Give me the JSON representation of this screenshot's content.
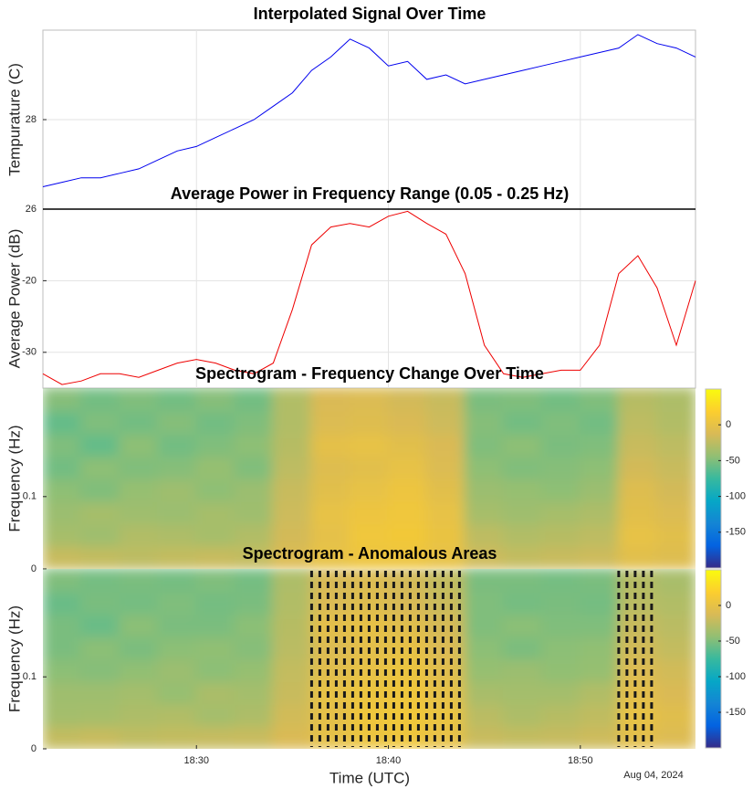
{
  "chart_data": [
    {
      "type": "line",
      "title": "Interpolated Signal Over Time",
      "ylabel": "Tempurature (C)",
      "color": "#0000ee",
      "grid": true,
      "x": [
        "18:22",
        "18:23",
        "18:24",
        "18:25",
        "18:26",
        "18:27",
        "18:28",
        "18:29",
        "18:30",
        "18:31",
        "18:32",
        "18:33",
        "18:34",
        "18:35",
        "18:36",
        "18:37",
        "18:38",
        "18:39",
        "18:40",
        "18:41",
        "18:42",
        "18:43",
        "18:44",
        "18:45",
        "18:46",
        "18:47",
        "18:48",
        "18:49",
        "18:50",
        "18:51",
        "18:52",
        "18:53",
        "18:54",
        "18:55",
        "18:56"
      ],
      "values": [
        26.5,
        26.6,
        26.7,
        26.7,
        26.8,
        26.9,
        27.1,
        27.3,
        27.4,
        27.6,
        27.8,
        28.0,
        28.3,
        28.6,
        29.1,
        29.4,
        29.8,
        29.6,
        29.2,
        29.3,
        28.9,
        29.0,
        28.8,
        28.9,
        29.0,
        29.1,
        29.2,
        29.3,
        29.4,
        29.5,
        29.6,
        29.9,
        29.7,
        29.6,
        29.4
      ],
      "xlim": [
        "18:22",
        "18:56"
      ],
      "ylim": [
        26,
        30
      ],
      "yticks": [
        26,
        28
      ]
    },
    {
      "type": "line",
      "title": "Average Power in Frequency Range (0.05 - 0.25 Hz)",
      "ylabel": "Average Power (dB)",
      "color": "#ee0000",
      "grid": true,
      "x": [
        "18:22",
        "18:23",
        "18:24",
        "18:25",
        "18:26",
        "18:27",
        "18:28",
        "18:29",
        "18:30",
        "18:31",
        "18:32",
        "18:33",
        "18:34",
        "18:35",
        "18:36",
        "18:37",
        "18:38",
        "18:39",
        "18:40",
        "18:41",
        "18:42",
        "18:43",
        "18:44",
        "18:45",
        "18:46",
        "18:47",
        "18:48",
        "18:49",
        "18:50",
        "18:51",
        "18:52",
        "18:53",
        "18:54",
        "18:55",
        "18:56"
      ],
      "values": [
        -33,
        -34.5,
        -34,
        -33,
        -33,
        -33.5,
        -32.5,
        -31.5,
        -31,
        -31.5,
        -32.5,
        -33,
        -31.5,
        -24,
        -15,
        -12.5,
        -12,
        -12.5,
        -11,
        -10.3,
        -12,
        -13.5,
        -19,
        -29,
        -33,
        -33.5,
        -33,
        -32.5,
        -32.5,
        -29,
        -19,
        -16.5,
        -21,
        -29,
        -20
      ],
      "xlim": [
        "18:22",
        "18:56"
      ],
      "ylim": [
        -35,
        -10
      ],
      "yticks": [
        -30,
        -20
      ]
    },
    {
      "type": "heatmap",
      "title": "Spectrogram - Frequency Change Over Time",
      "ylabel": "Frequency (Hz)",
      "xlim": [
        "18:22",
        "18:56"
      ],
      "ylim": [
        0,
        0.25
      ],
      "yticks": [
        0,
        0.1
      ],
      "clim": [
        -200,
        50
      ],
      "cticks": [
        -150,
        -100,
        -50,
        0
      ],
      "colormap": [
        "#352a87",
        "#0363e1",
        "#1485d4",
        "#06a7c6",
        "#38b99e",
        "#92bf73",
        "#d9ba56",
        "#fcce2e",
        "#f9fb0e"
      ],
      "z": [
        [
          -20,
          -22,
          -25,
          -22,
          -20,
          -22,
          -10,
          0,
          5,
          5,
          0,
          -18,
          -22,
          -20,
          -18,
          -5,
          -8
        ],
        [
          -35,
          -38,
          -30,
          -32,
          -35,
          -30,
          -15,
          -2,
          8,
          10,
          2,
          -25,
          -30,
          -28,
          -25,
          0,
          -5
        ],
        [
          -40,
          -35,
          -38,
          -40,
          -35,
          -38,
          -18,
          0,
          5,
          8,
          0,
          -35,
          -38,
          -35,
          -32,
          -5,
          -10
        ],
        [
          -45,
          -50,
          -42,
          -38,
          -45,
          -40,
          -20,
          -5,
          0,
          5,
          -5,
          -40,
          -42,
          -45,
          -40,
          -8,
          -15
        ],
        [
          -55,
          -45,
          -50,
          -48,
          -42,
          -50,
          -25,
          -8,
          -5,
          0,
          -10,
          -45,
          -50,
          -48,
          -45,
          -15,
          -20
        ],
        [
          -50,
          -60,
          -45,
          -55,
          -50,
          -45,
          -28,
          -3,
          0,
          -5,
          -12,
          -50,
          -45,
          -52,
          -50,
          -20,
          -25
        ],
        [
          -60,
          -50,
          -55,
          -48,
          -55,
          -50,
          -30,
          -10,
          -8,
          -12,
          -18,
          -48,
          -55,
          -50,
          -55,
          -25,
          -30
        ],
        [
          -48,
          -55,
          -50,
          -55,
          -48,
          -55,
          -30,
          -12,
          -10,
          -15,
          -20,
          -52,
          -50,
          -55,
          -50,
          -28,
          -32
        ]
      ]
    },
    {
      "type": "heatmap",
      "title": "Spectrogram - Anomalous Areas",
      "ylabel": "Frequency (Hz)",
      "xlabel": "Time (UTC)",
      "date_label": "Aug 04, 2024",
      "xlim": [
        "18:22",
        "18:56"
      ],
      "xticks": [
        "18:30",
        "18:40",
        "18:50"
      ],
      "ylim": [
        0,
        0.25
      ],
      "yticks": [
        0,
        0.1
      ],
      "clim": [
        -200,
        50
      ],
      "cticks": [
        -150,
        -100,
        -50,
        0
      ],
      "colormap": [
        "#352a87",
        "#0363e1",
        "#1485d4",
        "#06a7c6",
        "#38b99e",
        "#92bf73",
        "#d9ba56",
        "#fcce2e",
        "#f9fb0e"
      ],
      "z": [
        [
          -22,
          -20,
          -24,
          -22,
          -21,
          -20,
          -12,
          -2,
          4,
          6,
          0,
          -20,
          -22,
          -21,
          -18,
          -4,
          -9
        ],
        [
          -36,
          -35,
          -32,
          -30,
          -36,
          -32,
          -16,
          -3,
          6,
          9,
          3,
          -26,
          -32,
          -28,
          -24,
          0,
          -6
        ],
        [
          -38,
          -38,
          -36,
          -42,
          -33,
          -36,
          -20,
          0,
          4,
          7,
          -2,
          -34,
          -36,
          -36,
          -30,
          -4,
          -12
        ],
        [
          -46,
          -48,
          -44,
          -40,
          -46,
          -42,
          -22,
          -6,
          0,
          4,
          -6,
          -42,
          -40,
          -44,
          -42,
          -10,
          -16
        ],
        [
          -52,
          -46,
          -52,
          -46,
          -44,
          -48,
          -26,
          -9,
          -4,
          -1,
          -11,
          -46,
          -52,
          -46,
          -44,
          -16,
          -22
        ],
        [
          -52,
          -58,
          -46,
          -52,
          -52,
          -46,
          -28,
          -4,
          -1,
          -6,
          -14,
          -50,
          -46,
          -50,
          -50,
          -20,
          -26
        ],
        [
          -58,
          -52,
          -54,
          -50,
          -54,
          -52,
          -30,
          -11,
          -8,
          -13,
          -19,
          -50,
          -54,
          -52,
          -54,
          -26,
          -30
        ],
        [
          -50,
          -54,
          -52,
          -54,
          -50,
          -54,
          -32,
          -13,
          -10,
          -15,
          -22,
          -52,
          -52,
          -54,
          -52,
          -28,
          -34
        ]
      ],
      "anomalies": [
        [
          "18:36",
          "18:44"
        ],
        [
          "18:52",
          "18:54"
        ]
      ]
    }
  ]
}
